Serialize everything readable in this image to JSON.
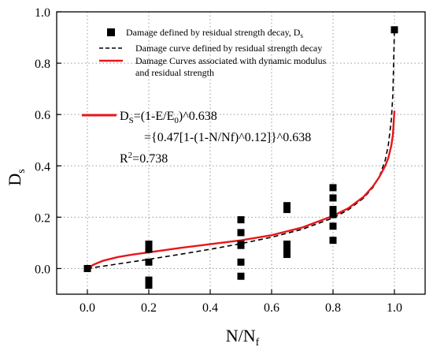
{
  "chart_data": {
    "type": "scatter",
    "xlabel": {
      "main": "N/N",
      "sub": "f"
    },
    "ylabel": {
      "main": "D",
      "sub": "s"
    },
    "xlim": [
      -0.1,
      1.1
    ],
    "ylim": [
      -0.1,
      1.0
    ],
    "x_ticks": [
      "0.0",
      "0.2",
      "0.4",
      "0.6",
      "0.8",
      "1.0"
    ],
    "y_ticks": [
      "0.0",
      "0.2",
      "0.4",
      "0.6",
      "0.8",
      "1.0"
    ],
    "x_tick_values": [
      0.0,
      0.2,
      0.4,
      0.6,
      0.8,
      1.0
    ],
    "y_tick_values": [
      0.0,
      0.2,
      0.4,
      0.6,
      0.8,
      1.0
    ],
    "grid": "dotted",
    "legend_position": "top",
    "series": [
      {
        "name": "Damage defined by residual strength decay, D",
        "name_sub": "s",
        "kind": "scatter",
        "marker": "square",
        "color": "#000000",
        "x": [
          0.0,
          0.2,
          0.2,
          0.2,
          0.2,
          0.2,
          0.5,
          0.5,
          0.5,
          0.5,
          0.5,
          0.5,
          0.65,
          0.65,
          0.65,
          0.65,
          0.65,
          0.8,
          0.8,
          0.8,
          0.8,
          0.8,
          0.8,
          1.0
        ],
        "y": [
          0.0,
          0.095,
          0.075,
          0.025,
          -0.045,
          -0.065,
          0.19,
          0.14,
          0.095,
          0.09,
          0.025,
          -0.03,
          0.245,
          0.23,
          0.095,
          0.07,
          0.055,
          0.315,
          0.275,
          0.23,
          0.165,
          0.11,
          0.21,
          0.93
        ]
      },
      {
        "name": "Damage curve defined by residual strength decay",
        "kind": "line",
        "dash": "dashed",
        "color": "#000000",
        "x": [
          0.0,
          0.1,
          0.2,
          0.3,
          0.4,
          0.5,
          0.6,
          0.7,
          0.8,
          0.85,
          0.9,
          0.93,
          0.95,
          0.97,
          0.98,
          0.99,
          0.995,
          1.0
        ],
        "y": [
          0.0,
          0.018,
          0.036,
          0.055,
          0.075,
          0.097,
          0.122,
          0.153,
          0.197,
          0.229,
          0.275,
          0.316,
          0.355,
          0.422,
          0.48,
          0.58,
          0.68,
          0.93
        ]
      },
      {
        "name": "Damage Curves associated with dynamic modulus and residual strength",
        "name_line2": "and residual strength",
        "name_line1": "Damage Curves associated with dynamic modulus",
        "kind": "line",
        "dash": "solid",
        "color": "#e8161b",
        "x": [
          0.0,
          0.02,
          0.05,
          0.1,
          0.15,
          0.2,
          0.3,
          0.4,
          0.5,
          0.6,
          0.7,
          0.8,
          0.85,
          0.9,
          0.93,
          0.95,
          0.97,
          0.98,
          0.99,
          0.995,
          1.0
        ],
        "y": [
          0.0,
          0.015,
          0.03,
          0.045,
          0.055,
          0.063,
          0.08,
          0.095,
          0.11,
          0.13,
          0.16,
          0.205,
          0.235,
          0.28,
          0.32,
          0.355,
          0.4,
          0.43,
          0.48,
          0.52,
          0.615
        ]
      }
    ],
    "annotations": {
      "eq1_prefix": "D",
      "eq1_sub": "S",
      "eq1_mid": "=(1-E/E",
      "eq1_sub2": "0",
      "eq1_suffix": ")^0.638",
      "eq2": "={0.47[1-(1-N/Nf)^0.12]}^0.638",
      "r2_prefix": "R",
      "r2_sup": "2",
      "r2_suffix": "=0.738"
    }
  }
}
